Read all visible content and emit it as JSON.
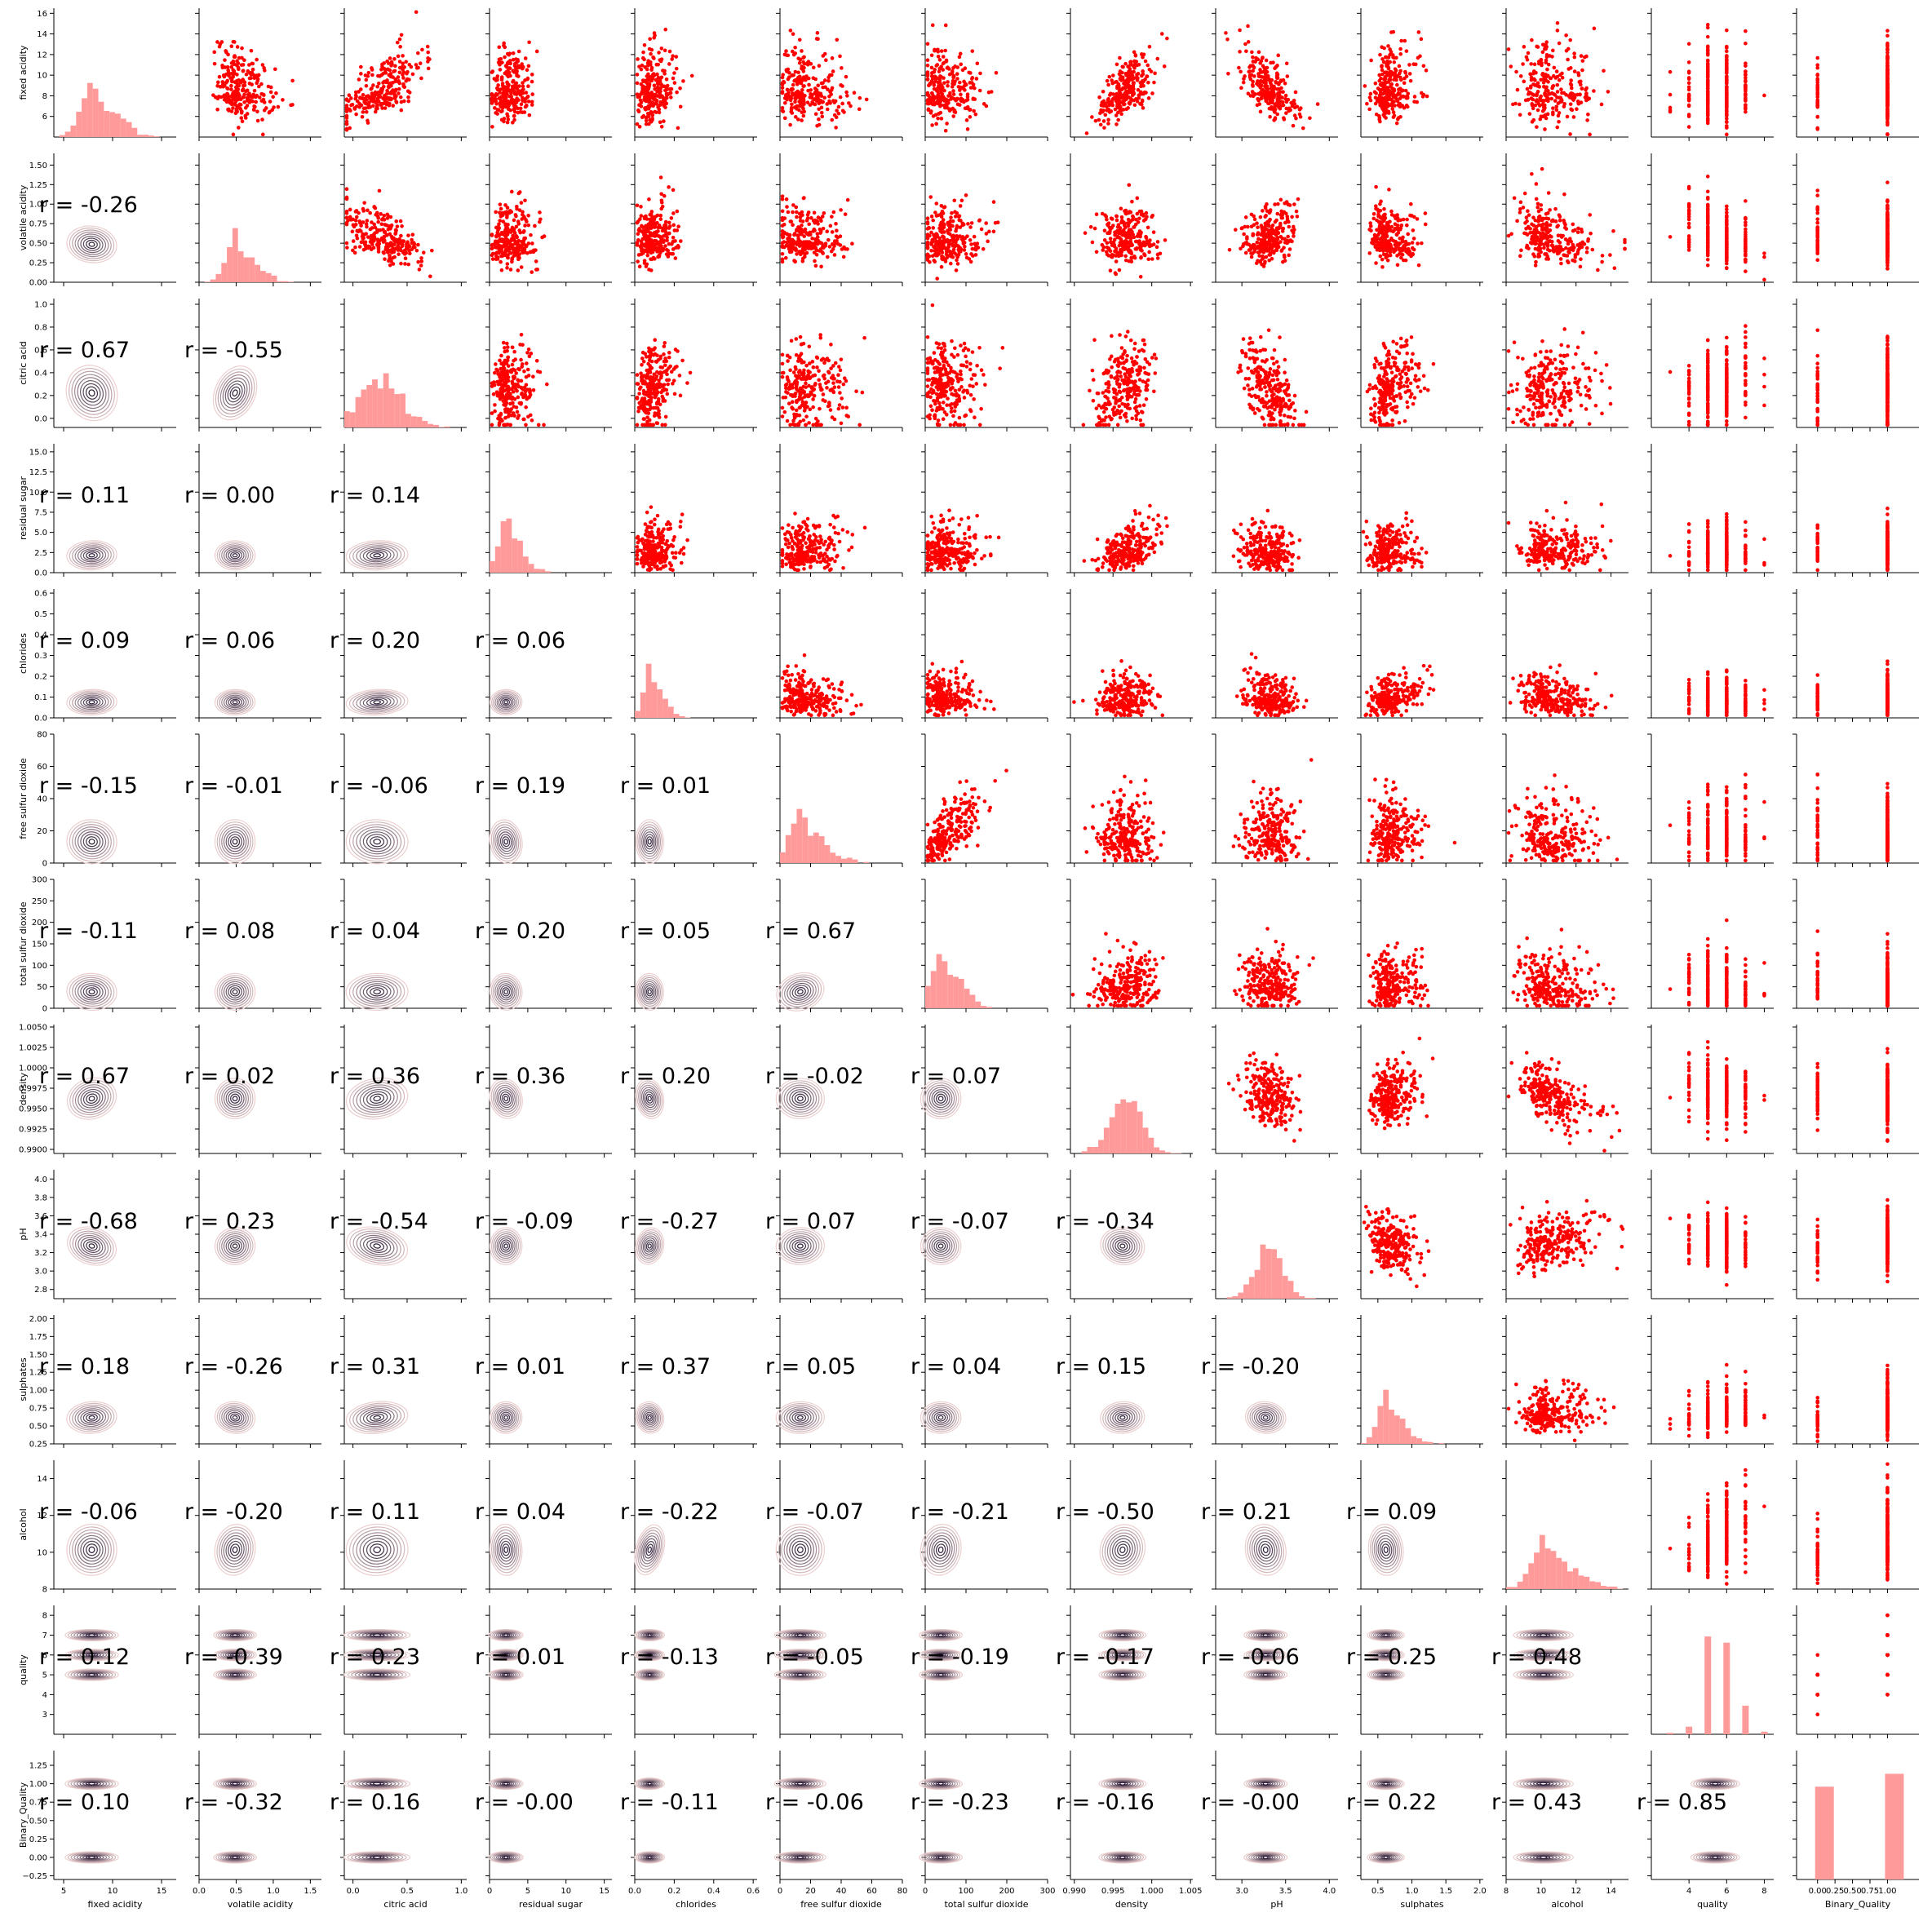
{
  "chart_data": {
    "type": "pairplot",
    "variables": [
      "fixed acidity",
      "volatile acidity",
      "citric acid",
      "residual sugar",
      "chlorides",
      "free sulfur dioxide",
      "total sulfur dioxide",
      "density",
      "pH",
      "sulphates",
      "alcohol",
      "quality",
      "Binary_Quality"
    ],
    "colors": {
      "scatter": "#ff0000",
      "hist": "#ff9a9a",
      "kde_dark": "#2b1a36",
      "kde_light": "#ecd0cf"
    },
    "upper": "scatter",
    "diagonal": "histogram",
    "lower": "kde with correlation coefficient",
    "ranges": [
      [
        4,
        16.5
      ],
      [
        0,
        1.65
      ],
      [
        -0.08,
        1.05
      ],
      [
        0,
        16
      ],
      [
        0,
        0.62
      ],
      [
        0,
        80
      ],
      [
        0,
        300
      ],
      [
        0.9895,
        1.0053
      ],
      [
        2.7,
        4.1
      ],
      [
        0.25,
        2.05
      ],
      [
        8,
        15
      ],
      [
        2,
        8.5
      ],
      [
        -0.3,
        1.45
      ]
    ],
    "xticks": [
      {
        "v": [
          5,
          10,
          15
        ],
        "t": [
          "5",
          "10",
          "15"
        ]
      },
      {
        "v": [
          0,
          0.5,
          1.0,
          1.5
        ],
        "t": [
          "0.0",
          "0.5",
          "1.0",
          "1.5"
        ]
      },
      {
        "v": [
          0,
          0.5,
          1.0
        ],
        "t": [
          "0.0",
          "0.5",
          "1.0"
        ]
      },
      {
        "v": [
          0,
          5,
          10,
          15
        ],
        "t": [
          "0",
          "5",
          "10",
          "15"
        ]
      },
      {
        "v": [
          0,
          0.2,
          0.4,
          0.6
        ],
        "t": [
          "0.0",
          "0.2",
          "0.4",
          "0.6"
        ]
      },
      {
        "v": [
          0,
          20,
          40,
          60,
          80
        ],
        "t": [
          "0",
          "20",
          "40",
          "60",
          "80"
        ]
      },
      {
        "v": [
          0,
          100,
          200,
          300
        ],
        "t": [
          "0",
          "100",
          "200",
          "300"
        ]
      },
      {
        "v": [
          0.99,
          0.995,
          1.0,
          1.005
        ],
        "t": [
          "0.990",
          "0.995",
          "1.000",
          "1.005"
        ]
      },
      {
        "v": [
          3.0,
          3.5,
          4.0
        ],
        "t": [
          "3.0",
          "3.5",
          "4.0"
        ]
      },
      {
        "v": [
          0.5,
          1.0,
          1.5,
          2.0
        ],
        "t": [
          "0.5",
          "1.0",
          "1.5",
          "2.0"
        ]
      },
      {
        "v": [
          8,
          10,
          12,
          14
        ],
        "t": [
          "8",
          "10",
          "12",
          "14"
        ]
      },
      {
        "v": [
          4,
          6,
          8
        ],
        "t": [
          "4",
          "6",
          "8"
        ]
      },
      {
        "v": [
          0,
          0.25,
          0.5,
          0.75,
          1.0
        ],
        "t": [
          "0.00",
          "0.25",
          "0.50",
          "0.75",
          "1.00"
        ]
      }
    ],
    "yticks": [
      {
        "v": [
          6,
          8,
          10,
          12,
          14,
          16
        ],
        "t": [
          "6",
          "8",
          "10",
          "12",
          "14",
          "16"
        ]
      },
      {
        "v": [
          0,
          0.25,
          0.5,
          0.75,
          1.0,
          1.25,
          1.5
        ],
        "t": [
          "0.00",
          "0.25",
          "0.50",
          "0.75",
          "1.00",
          "1.25",
          "1.50"
        ]
      },
      {
        "v": [
          0,
          0.2,
          0.4,
          0.6,
          0.8,
          1.0
        ],
        "t": [
          "0.0",
          "0.2",
          "0.4",
          "0.6",
          "0.8",
          "1.0"
        ]
      },
      {
        "v": [
          0,
          2.5,
          5,
          7.5,
          10,
          12.5,
          15
        ],
        "t": [
          "0.0",
          "2.5",
          "5.0",
          "7.5",
          "10.0",
          "12.5",
          "15.0"
        ]
      },
      {
        "v": [
          0,
          0.1,
          0.2,
          0.3,
          0.4,
          0.5,
          0.6
        ],
        "t": [
          "0.0",
          "0.1",
          "0.2",
          "0.3",
          "0.4",
          "0.5",
          "0.6"
        ]
      },
      {
        "v": [
          0,
          20,
          40,
          60,
          80
        ],
        "t": [
          "0",
          "20",
          "40",
          "60",
          "80"
        ]
      },
      {
        "v": [
          0,
          50,
          100,
          150,
          200,
          250,
          300
        ],
        "t": [
          "0",
          "50",
          "100",
          "150",
          "200",
          "250",
          "300"
        ]
      },
      {
        "v": [
          0.99,
          0.9925,
          0.995,
          0.9975,
          1.0,
          1.0025,
          1.005
        ],
        "t": [
          "0.9900",
          "0.9925",
          "0.9950",
          "0.9975",
          "1.0000",
          "1.0025",
          "1.0050"
        ]
      },
      {
        "v": [
          2.8,
          3.0,
          3.2,
          3.4,
          3.6,
          3.8,
          4.0
        ],
        "t": [
          "2.8",
          "3.0",
          "3.2",
          "3.4",
          "3.6",
          "3.8",
          "4.0"
        ]
      },
      {
        "v": [
          0.25,
          0.5,
          0.75,
          1.0,
          1.25,
          1.5,
          1.75,
          2.0
        ],
        "t": [
          "0.25",
          "0.50",
          "0.75",
          "1.00",
          "1.25",
          "1.50",
          "1.75",
          "2.00"
        ]
      },
      {
        "v": [
          8,
          10,
          12,
          14
        ],
        "t": [
          "8",
          "10",
          "12",
          "14"
        ]
      },
      {
        "v": [
          3,
          4,
          5,
          6,
          7,
          8
        ],
        "t": [
          "3",
          "4",
          "5",
          "6",
          "7",
          "8"
        ]
      },
      {
        "v": [
          -0.25,
          0,
          0.25,
          0.5,
          0.75,
          1.0,
          1.25
        ],
        "t": [
          "−0.25",
          "0.00",
          "0.25",
          "0.50",
          "0.75",
          "1.00",
          "1.25"
        ]
      }
    ],
    "means": [
      8.3,
      0.53,
      0.27,
      2.5,
      0.087,
      15.9,
      46.5,
      0.9967,
      3.31,
      0.66,
      10.4,
      5.6,
      0.53
    ],
    "sds": [
      1.7,
      0.18,
      0.19,
      1.4,
      0.047,
      10.5,
      32.9,
      0.0019,
      0.154,
      0.17,
      1.07,
      0.81,
      0.5
    ],
    "correlations": [
      [
        "r = -0.26"
      ],
      [
        "r = 0.67",
        "r = -0.55"
      ],
      [
        "r = 0.11",
        "r = 0.00",
        "r = 0.14"
      ],
      [
        "r = 0.09",
        "r = 0.06",
        "r = 0.20",
        "r = 0.06"
      ],
      [
        "r = -0.15",
        "r = -0.01",
        "r = -0.06",
        "r = 0.19",
        "r = 0.01"
      ],
      [
        "r = -0.11",
        "r = 0.08",
        "r = 0.04",
        "r = 0.20",
        "r = 0.05",
        "r = 0.67"
      ],
      [
        "r = 0.67",
        "r = 0.02",
        "r = 0.36",
        "r = 0.36",
        "r = 0.20",
        "r = -0.02",
        "r = 0.07"
      ],
      [
        "r = -0.68",
        "r = 0.23",
        "r = -0.54",
        "r = -0.09",
        "r = -0.27",
        "r = 0.07",
        "r = -0.07",
        "r = -0.34"
      ],
      [
        "r = 0.18",
        "r = -0.26",
        "r = 0.31",
        "r = 0.01",
        "r = 0.37",
        "r = 0.05",
        "r = 0.04",
        "r = 0.15",
        "r = -0.20"
      ],
      [
        "r = -0.06",
        "r = -0.20",
        "r = 0.11",
        "r = 0.04",
        "r = -0.22",
        "r = -0.07",
        "r = -0.21",
        "r = -0.50",
        "r = 0.21",
        "r = 0.09"
      ],
      [
        "r = 0.12",
        "r = -0.39",
        "r = 0.23",
        "r = 0.01",
        "r = -0.13",
        "r = -0.05",
        "r = -0.19",
        "r = -0.17",
        "r = -0.06",
        "r = 0.25",
        "r = 0.48"
      ],
      [
        "r = 0.10",
        "r = -0.32",
        "r = 0.16",
        "r = -0.00",
        "r = -0.11",
        "r = -0.06",
        "r = -0.23",
        "r = -0.16",
        "r = -0.00",
        "r = 0.22",
        "r = 0.43",
        "r = 0.85"
      ]
    ]
  }
}
